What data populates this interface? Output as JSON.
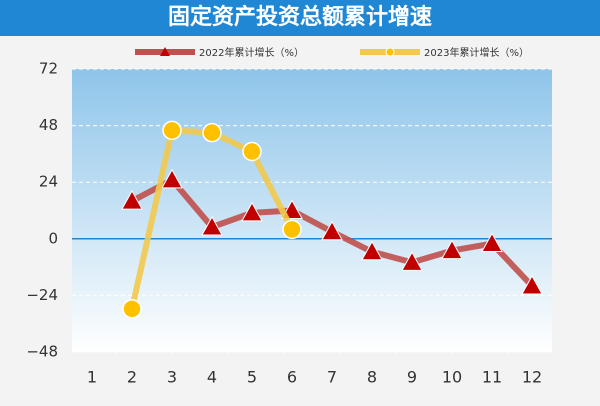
{
  "chart_data": {
    "type": "line",
    "title": "固定资产投资总额累计增速",
    "categories": [
      "1",
      "2",
      "3",
      "4",
      "5",
      "6",
      "7",
      "8",
      "9",
      "10",
      "11",
      "12"
    ],
    "series": [
      {
        "name": "2022年累计增长（%）",
        "color": "#c0504d",
        "marker": "triangle",
        "values": [
          null,
          16,
          25,
          5,
          11,
          12,
          3,
          -5.5,
          -10,
          -5,
          -2,
          -20
        ]
      },
      {
        "name": "2023年累计增长（%）",
        "color": "#f2c94c",
        "marker": "circle",
        "values": [
          null,
          -29.7,
          46,
          45,
          37,
          4,
          null,
          null,
          null,
          null,
          null,
          null
        ]
      }
    ],
    "ylim": [
      -48,
      72
    ],
    "yticks": [
      {
        "value": -48,
        "label": "−48"
      },
      {
        "value": -24,
        "label": "−24"
      },
      0,
      24,
      48,
      72
    ],
    "grid": true
  }
}
